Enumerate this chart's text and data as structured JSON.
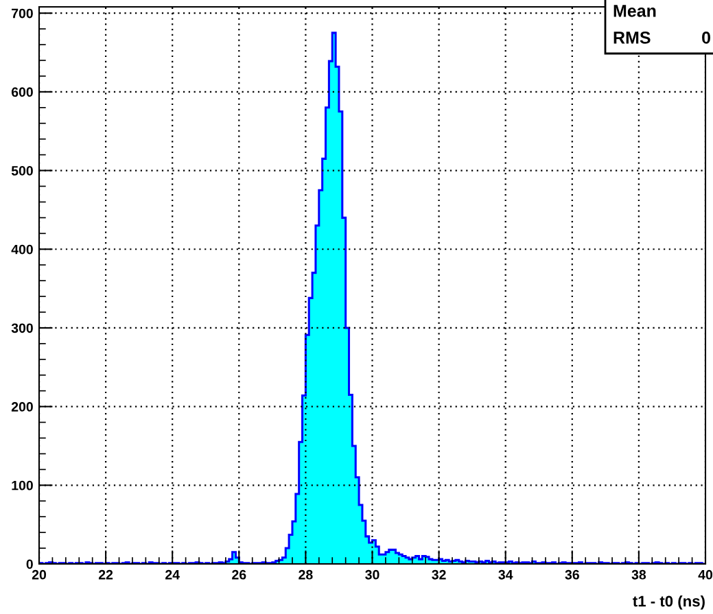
{
  "chart_data": {
    "type": "histogram",
    "xlabel": "t1 - t0 (ns)",
    "bins": [
      20.0,
      20.1,
      20.2,
      20.3,
      20.4,
      20.5,
      20.6,
      20.7,
      20.8,
      20.9,
      21.0,
      21.1,
      21.2,
      21.3,
      21.4,
      21.5,
      21.6,
      21.7,
      21.8,
      21.9,
      22.0,
      22.1,
      22.2,
      22.3,
      22.4,
      22.5,
      22.6,
      22.7,
      22.8,
      22.9,
      23.0,
      23.1,
      23.2,
      23.3,
      23.4,
      23.5,
      23.6,
      23.7,
      23.8,
      23.9,
      24.0,
      24.1,
      24.2,
      24.3,
      24.4,
      24.5,
      24.6,
      24.7,
      24.8,
      24.9,
      25.0,
      25.1,
      25.2,
      25.3,
      25.4,
      25.5,
      25.6,
      25.7,
      25.8,
      25.9,
      26.0,
      26.1,
      26.2,
      26.3,
      26.4,
      26.5,
      26.6,
      26.7,
      26.8,
      26.9,
      27.0,
      27.1,
      27.2,
      27.3,
      27.4,
      27.5,
      27.6,
      27.7,
      27.8,
      27.9,
      28.0,
      28.1,
      28.2,
      28.3,
      28.4,
      28.5,
      28.6,
      28.7,
      28.8,
      28.9,
      29.0,
      29.1,
      29.2,
      29.3,
      29.4,
      29.5,
      29.6,
      29.7,
      29.8,
      29.9,
      30.0,
      30.1,
      30.2,
      30.3,
      30.4,
      30.5,
      30.6,
      30.7,
      30.8,
      30.9,
      31.0,
      31.1,
      31.2,
      31.3,
      31.4,
      31.5,
      31.6,
      31.7,
      31.8,
      31.9,
      32.0,
      32.1,
      32.2,
      32.3,
      32.4,
      32.5,
      32.6,
      32.7,
      32.8,
      32.9,
      33.0,
      33.1,
      33.2,
      33.3,
      33.4,
      33.5,
      33.6,
      33.7,
      33.8,
      33.9,
      34.0,
      34.1,
      34.2,
      34.3,
      34.4,
      34.5,
      34.6,
      34.7,
      34.8,
      34.9,
      35.0,
      35.1,
      35.2,
      35.3,
      35.4,
      35.5,
      35.6,
      35.7,
      35.8,
      35.9,
      36.0,
      36.1,
      36.2,
      36.3,
      36.4,
      36.5,
      36.6,
      36.7,
      36.8,
      36.9,
      37.0,
      37.1,
      37.2,
      37.3,
      37.4,
      37.5,
      37.6,
      37.7,
      37.8,
      37.9,
      38.0,
      38.1,
      38.2,
      38.3,
      38.4,
      38.5,
      38.6,
      38.7,
      38.8,
      38.9,
      39.0,
      39.1,
      39.2,
      39.3,
      39.4,
      39.5,
      39.6,
      39.7,
      39.8,
      39.9,
      40.0
    ],
    "series": [
      {
        "color": "#00ffff",
        "values": [
          1,
          0,
          1,
          2,
          1,
          0,
          1,
          1,
          0,
          1,
          0,
          1,
          1,
          0,
          2,
          1,
          0,
          1,
          1,
          0,
          1,
          0,
          1,
          1,
          0,
          1,
          2,
          0,
          1,
          1,
          0,
          1,
          0,
          2,
          1,
          1,
          0,
          1,
          0,
          1,
          1,
          1,
          0,
          1,
          0,
          1,
          1,
          2,
          1,
          0,
          1,
          0,
          1,
          1,
          2,
          1,
          3,
          6,
          15,
          8,
          2,
          1,
          1,
          0,
          1,
          1,
          1,
          2,
          1,
          1,
          2,
          4,
          5,
          8,
          20,
          37,
          54,
          89,
          155,
          214,
          291,
          338,
          370,
          430,
          475,
          515,
          580,
          639,
          675,
          632,
          575,
          440,
          300,
          215,
          150,
          110,
          75,
          55,
          35,
          27,
          30,
          22,
          12,
          12,
          15,
          18,
          18,
          14,
          12,
          10,
          8,
          6,
          8,
          10,
          6,
          10,
          9,
          6,
          5,
          5,
          6,
          4,
          5,
          3,
          4,
          5,
          3,
          2,
          4,
          3,
          3,
          2,
          3,
          2,
          4,
          2,
          3,
          1,
          2,
          2,
          2,
          3,
          1,
          2,
          1,
          2,
          2,
          1,
          3,
          1,
          1,
          2,
          1,
          1,
          2,
          0,
          1,
          2,
          1,
          1,
          1,
          1,
          2,
          0,
          1,
          1,
          1,
          0,
          2,
          1,
          1,
          0,
          1,
          1,
          0,
          1,
          2,
          1,
          0,
          1,
          0,
          1,
          1,
          0,
          1,
          2,
          1,
          0,
          1,
          0,
          1,
          0,
          1,
          1,
          0,
          1,
          0,
          1,
          1,
          0
        ]
      }
    ],
    "xlim": [
      20,
      40
    ],
    "xticks": [
      20,
      22,
      24,
      26,
      28,
      30,
      32,
      34,
      36,
      38,
      40
    ],
    "ylim": [
      0,
      708
    ],
    "yticks": [
      0,
      100,
      200,
      300,
      400,
      500,
      600,
      700
    ],
    "grid": true,
    "line_style": "solid",
    "annotations": [
      "Mean",
      "RMS",
      "0"
    ]
  }
}
